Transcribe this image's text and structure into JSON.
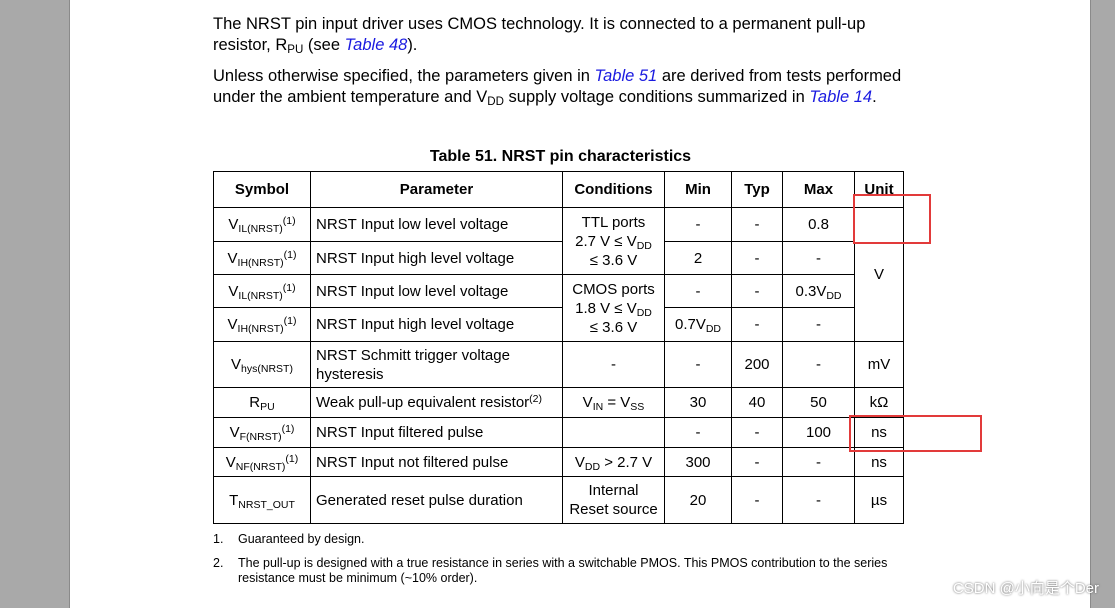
{
  "paragraph1": {
    "text1": "The NRST pin input driver uses CMOS technology. It is connected to a permanent pull-up resistor, R",
    "sub": "PU",
    "text2": " (see ",
    "link": "Table 48",
    "text3": ")."
  },
  "paragraph2": {
    "text1": "Unless otherwise specified, the parameters given in ",
    "link1": "Table 51",
    "text2": " are derived from tests performed under the ambient temperature and V",
    "sub": "DD",
    "text3": " supply voltage conditions summarized in ",
    "link2": "Table 14",
    "text4": "."
  },
  "table": {
    "caption": "Table 51. NRST pin characteristics",
    "headers": {
      "symbol": "Symbol",
      "parameter": "Parameter",
      "conditions": "Conditions",
      "min": "Min",
      "typ": "Typ",
      "max": "Max",
      "unit": "Unit"
    },
    "rows": [
      {
        "sym": "V",
        "sym_sub": "IL(NRST)",
        "sym_sup": "(1)",
        "param": "NRST Input low level voltage",
        "min": "-",
        "typ": "-",
        "max": "0.8"
      },
      {
        "sym": "V",
        "sym_sub": "IH(NRST)",
        "sym_sup": "(1)",
        "param": "NRST Input high level voltage",
        "min": "2",
        "typ": "-",
        "max": "-"
      },
      {
        "sym": "V",
        "sym_sub": "IL(NRST)",
        "sym_sup": "(1)",
        "param": "NRST Input low level voltage",
        "min": "-",
        "typ": "-",
        "max": "0.3V",
        "max_sub": "DD"
      },
      {
        "sym": "V",
        "sym_sub": "IH(NRST)",
        "sym_sup": "(1)",
        "param": "NRST Input high level voltage",
        "min": "0.7V",
        "min_sub": "DD",
        "typ": "-",
        "max": "-"
      },
      {
        "sym": "V",
        "sym_sub": "hys(NRST)",
        "param": "NRST Schmitt trigger voltage hysteresis",
        "cond": "-",
        "min": "-",
        "typ": "200",
        "max": "-",
        "unit": "mV"
      },
      {
        "sym": "R",
        "sym_sub": "PU",
        "param": "Weak pull-up equivalent resistor",
        "param_sup": "(2)",
        "cond_a": "V",
        "cond_a_sub": "IN",
        "cond_b": " = V",
        "cond_b_sub": "SS",
        "min": "30",
        "typ": "40",
        "max": "50",
        "unit": "kΩ"
      },
      {
        "sym": "V",
        "sym_sub": "F(NRST)",
        "sym_sup": "(1)",
        "param": "NRST Input filtered pulse",
        "cond": "",
        "min": "-",
        "typ": "-",
        "max": "100",
        "unit": "ns"
      },
      {
        "sym": "V",
        "sym_sub": "NF(NRST)",
        "sym_sup": "(1)",
        "param": "NRST Input not filtered pulse",
        "cond_a": "V",
        "cond_a_sub": "DD",
        "cond_b": " > 2.7 V",
        "min": "300",
        "typ": "-",
        "max": "-",
        "unit": "ns"
      },
      {
        "sym": "T",
        "sym_sub": "NRST_OUT",
        "param": "Generated reset pulse duration",
        "cond1": "Internal",
        "cond2": "Reset source",
        "min": "20",
        "typ": "-",
        "max": "-",
        "unit": "µs"
      }
    ],
    "group1": {
      "line1": "TTL ports",
      "line2a": "2.7 V ≤ V",
      "line2_sub": "DD",
      "line3": "≤ 3.6 V"
    },
    "group2": {
      "line1": "CMOS ports",
      "line2a": "1.8 V ≤ V",
      "line2_sub": "DD",
      "line3": "≤ 3.6 V"
    },
    "unit_v": "V"
  },
  "notes": [
    {
      "num": "1.",
      "text": "Guaranteed by design."
    },
    {
      "num": "2.",
      "text": "The pull-up is designed with a true resistance in series with a switchable PMOS. This PMOS contribution to the series resistance must be minimum (~10% order)."
    }
  ],
  "watermark": "CSDN @小向是个Der",
  "highlight_color": "#e23a3a"
}
